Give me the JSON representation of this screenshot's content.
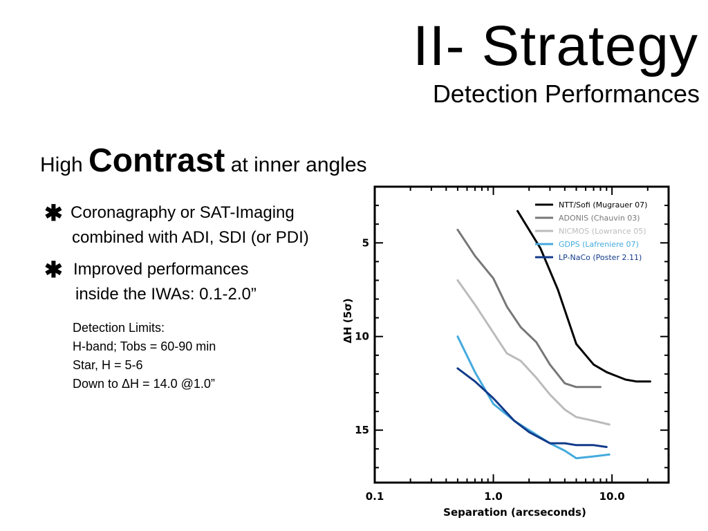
{
  "slide": {
    "title": "II- Strategy",
    "subtitle": "Detection Performances",
    "headline": {
      "pre": "High",
      "emphasis": "Contrast",
      "post": "at inner angles"
    },
    "bullets": [
      {
        "icon": "asterisk-icon",
        "symbol": "✱",
        "lines": [
          "Coronagraphy or SAT-Imaging",
          "combined with ADI, SDI (or PDI)"
        ]
      },
      {
        "icon": "asterisk-icon",
        "symbol": "✱",
        "lines": [
          "Improved performances",
          "inside the IWAs: 0.1-2.0”"
        ]
      }
    ],
    "notes": [
      "Detection Limits:",
      "H-band; Tobs = 60-90 min",
      "Star, H = 5-6",
      "Down to ΔH = 14.0 @1.0”"
    ]
  },
  "chart_data": {
    "type": "line",
    "xlabel": "Separation (arcseconds)",
    "ylabel": "ΔH (5σ)",
    "xscale": "log",
    "xlim": [
      0.1,
      30
    ],
    "ylim": [
      17.8,
      2.0
    ],
    "y_inverted": true,
    "xticks": [
      {
        "value": 0.1,
        "label": "0.1"
      },
      {
        "value": 1.0,
        "label": "1.0"
      },
      {
        "value": 10.0,
        "label": "10.0"
      }
    ],
    "yticks": [
      {
        "value": 5,
        "label": "5"
      },
      {
        "value": 10,
        "label": "10"
      },
      {
        "value": 15,
        "label": "15"
      }
    ],
    "grid": false,
    "legend_position": "top-right",
    "series": [
      {
        "name": "NTT/Sofi (Mugrauer 07)",
        "color": "#000000",
        "x": [
          1.6,
          2.5,
          3.5,
          5.0,
          7.0,
          9.0,
          13.0,
          16.0,
          21.0
        ],
        "y": [
          3.3,
          5.3,
          7.5,
          10.4,
          11.5,
          11.9,
          12.3,
          12.4,
          12.4
        ]
      },
      {
        "name": "ADONIS (Chauvin 03)",
        "color": "#777777",
        "x": [
          0.5,
          0.7,
          1.0,
          1.3,
          1.7,
          2.3,
          3.0,
          4.0,
          5.0,
          6.0,
          8.0
        ],
        "y": [
          4.3,
          5.7,
          6.9,
          8.4,
          9.5,
          10.3,
          11.5,
          12.5,
          12.7,
          12.7,
          12.7
        ]
      },
      {
        "name": "NICMOS (Lowrance 05)",
        "color": "#bbbbbb",
        "x": [
          0.5,
          0.7,
          1.0,
          1.3,
          1.7,
          2.3,
          3.0,
          4.0,
          5.0,
          7.0,
          9.5
        ],
        "y": [
          7.0,
          8.3,
          9.8,
          10.9,
          11.3,
          12.2,
          13.1,
          13.9,
          14.3,
          14.5,
          14.7
        ]
      },
      {
        "name": "GDPS (Lafreniere 07)",
        "color": "#44aadd",
        "x": [
          0.5,
          0.7,
          1.0,
          1.5,
          2.0,
          3.0,
          4.0,
          5.0,
          7.0,
          9.5
        ],
        "y": [
          10.0,
          11.9,
          13.6,
          14.5,
          15.0,
          15.7,
          16.1,
          16.5,
          16.4,
          16.3
        ]
      },
      {
        "name": "LP-NaCo (Poster 2.11)",
        "color": "#123a8a",
        "x": [
          0.5,
          0.7,
          1.0,
          1.5,
          2.0,
          3.0,
          4.0,
          5.0,
          7.0,
          9.0
        ],
        "y": [
          11.7,
          12.4,
          13.3,
          14.5,
          15.1,
          15.7,
          15.7,
          15.8,
          15.8,
          15.9
        ]
      }
    ]
  }
}
